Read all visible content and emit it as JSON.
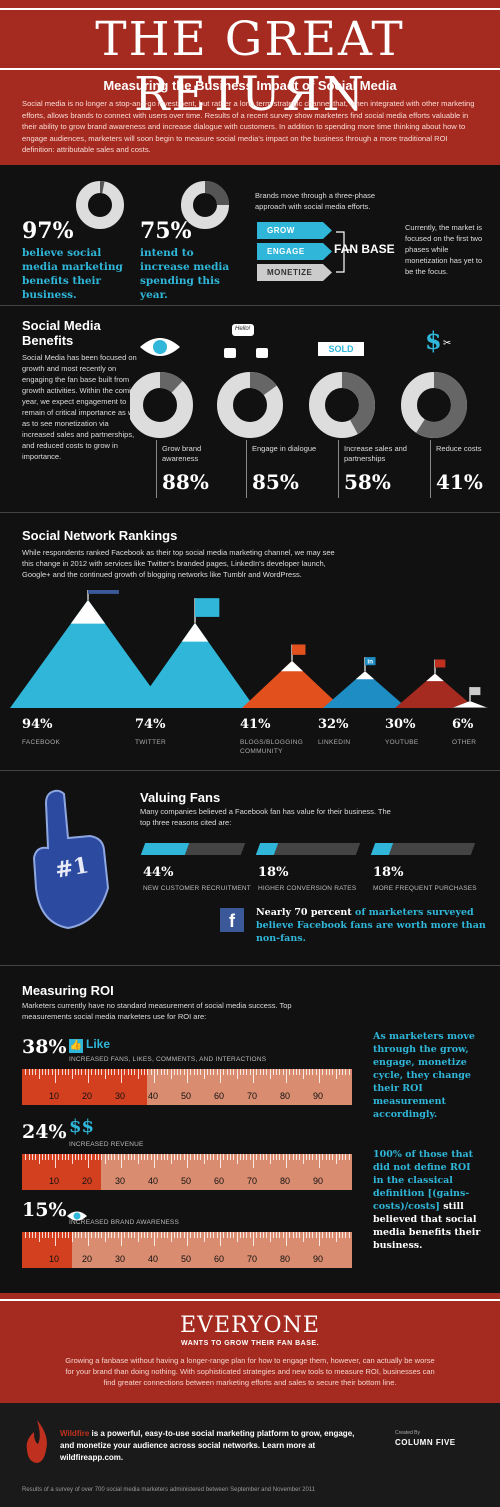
{
  "header": {
    "title": "THE GREAT RETUЯN",
    "subtitle": "Measuring the Business Impact of Social Media",
    "intro": "Social media is no longer a stop-and-go investment, but rather a long term strategic channel that, when integrated with other marketing efforts, allows brands to connect with users over time. Results of a recent survey show marketers find social media efforts valuable in their ability to grow brand awareness and increase dialogue with customers. In addition to spending more time thinking about how to engage audiences, marketers will soon begin to measure social media's impact on the business through a more traditional ROI definition: attributable sales and costs."
  },
  "stats": {
    "stat1": {
      "pct": "97%",
      "text": "believe social media marketing benefits their business.",
      "value": 97
    },
    "stat2": {
      "pct": "75%",
      "text": "intend to increase media spending this year.",
      "value": 75
    },
    "phases_intro": "Brands move through a three-phase approach with social media efforts.",
    "phases": [
      "GROW",
      "ENGAGE",
      "MONETIZE"
    ],
    "fan_base": "FAN BASE",
    "phases_note": "Currently, the market is focused on the first two phases while monetization has yet to be the focus."
  },
  "benefits": {
    "title": "Social Media Benefits",
    "text": "Social Media has been focused on growth and most recently on engaging the fan base built from growth activities. Within the coming year, we expect engagement to remain of critical importance as well as to see monetization via increased sales and partnerships, and reduced costs to grow in importance.",
    "hello": "Hello!",
    "sold": "SOLD",
    "items": [
      {
        "label": "Grow brand awareness",
        "pct": "88%",
        "value": 88
      },
      {
        "label": "Engage in dialogue",
        "pct": "85%",
        "value": 85
      },
      {
        "label": "Increase sales and partnerships",
        "pct": "58%",
        "value": 58
      },
      {
        "label": "Reduce costs",
        "pct": "41%",
        "value": 41
      }
    ]
  },
  "rankings": {
    "title": "Social Network Rankings",
    "text": "While respondents ranked Facebook as their top social media marketing channel, we may see this change in 2012 with services like Twitter's branded pages, LinkedIn's developer launch, Google+ and the continued growth of blogging networks like Tumblr and WordPress.",
    "items": [
      {
        "pct": "94%",
        "name": "FACEBOOK",
        "value": 94,
        "color": "#2fb6d8",
        "flag": "#3b5998",
        "glyph": "f"
      },
      {
        "pct": "74%",
        "name": "TWITTER",
        "value": 74,
        "color": "#2fb6d8",
        "flag": "#2fb6d8",
        "glyph": "t"
      },
      {
        "pct": "41%",
        "name": "BLOGS/BLOGGING COMMUNITY",
        "value": 41,
        "color": "#e2501e",
        "flag": "#e2501e",
        "glyph": "rss"
      },
      {
        "pct": "32%",
        "name": "LINKEDIN",
        "value": 32,
        "color": "#1d8dc4",
        "flag": "#1d8dc4",
        "glyph": "in"
      },
      {
        "pct": "30%",
        "name": "YOUTUBE",
        "value": 30,
        "color": "#a52a1f",
        "flag": "#c0301f",
        "glyph": "yt"
      },
      {
        "pct": "6%",
        "name": "OTHER",
        "value": 6,
        "color": "#888",
        "flag": "#ccc",
        "glyph": ""
      }
    ]
  },
  "fans": {
    "title": "Valuing Fans",
    "text": "Many companies believed a Facebook fan has value for their business. The top three reasons cited are:",
    "finger_label": "#1",
    "items": [
      {
        "pct": "44%",
        "label": "NEW CUSTOMER RECRUITMENT",
        "value": 44
      },
      {
        "pct": "18%",
        "label": "HIGHER CONVERSION RATES",
        "value": 18
      },
      {
        "pct": "18%",
        "label": "MORE FREQUENT PURCHASES",
        "value": 18
      }
    ],
    "note_white": "Nearly 70 percent",
    "note_cyan": "of marketers surveyed believe Facebook fans are worth more than non-fans."
  },
  "roi": {
    "title": "Measuring ROI",
    "text": "Marketers currently have no standard measurement of social media success. Top measurements social media marketers use for ROI are:",
    "like": "Like",
    "items": [
      {
        "pct": "38%",
        "label": "INCREASED FANS, LIKES, COMMENTS, AND INTERACTIONS",
        "value": 38
      },
      {
        "pct": "24%",
        "label": "INCREASED REVENUE",
        "value": 24
      },
      {
        "pct": "15%",
        "label": "INCREASED BRAND AWARENESS",
        "value": 15
      }
    ],
    "ticks": [
      "10",
      "20",
      "30",
      "40",
      "50",
      "60",
      "70",
      "80",
      "90"
    ],
    "side1": "As marketers move through the grow, engage, monetize cycle, they change their ROI measurement accordingly.",
    "side2_cyan": "100% of those that did not define ROI in the classical definition [(gains-costs)/costs]",
    "side2_white": "still believed that social media benefits their business."
  },
  "everyone": {
    "title": "EVERYONE",
    "sub": "WANTS TO GROW THEIR FAN BASE.",
    "text": "Growing a fanbase without having a longer-range plan for how to engage them, however, can actually be worse for your brand than doing nothing. With sophisticated strategies and new tools to measure ROI, businesses can find greater connections between marketing efforts and sales to secure their bottom line."
  },
  "footer": {
    "brand": "Wildfire",
    "text": " is a powerful, easy-to-use social marketing platform to grow, engage, and monetize your audience across social networks. Learn more at wildfireapp.com.",
    "created_by": "Created By",
    "column_five": "COLUMN FIVE",
    "source": "Results of a survey of over 700 social media marketers administered between September and November 2011"
  },
  "colors": {
    "red": "#a52a1f",
    "cyan": "#2fb6d8",
    "dark": "#111111"
  }
}
